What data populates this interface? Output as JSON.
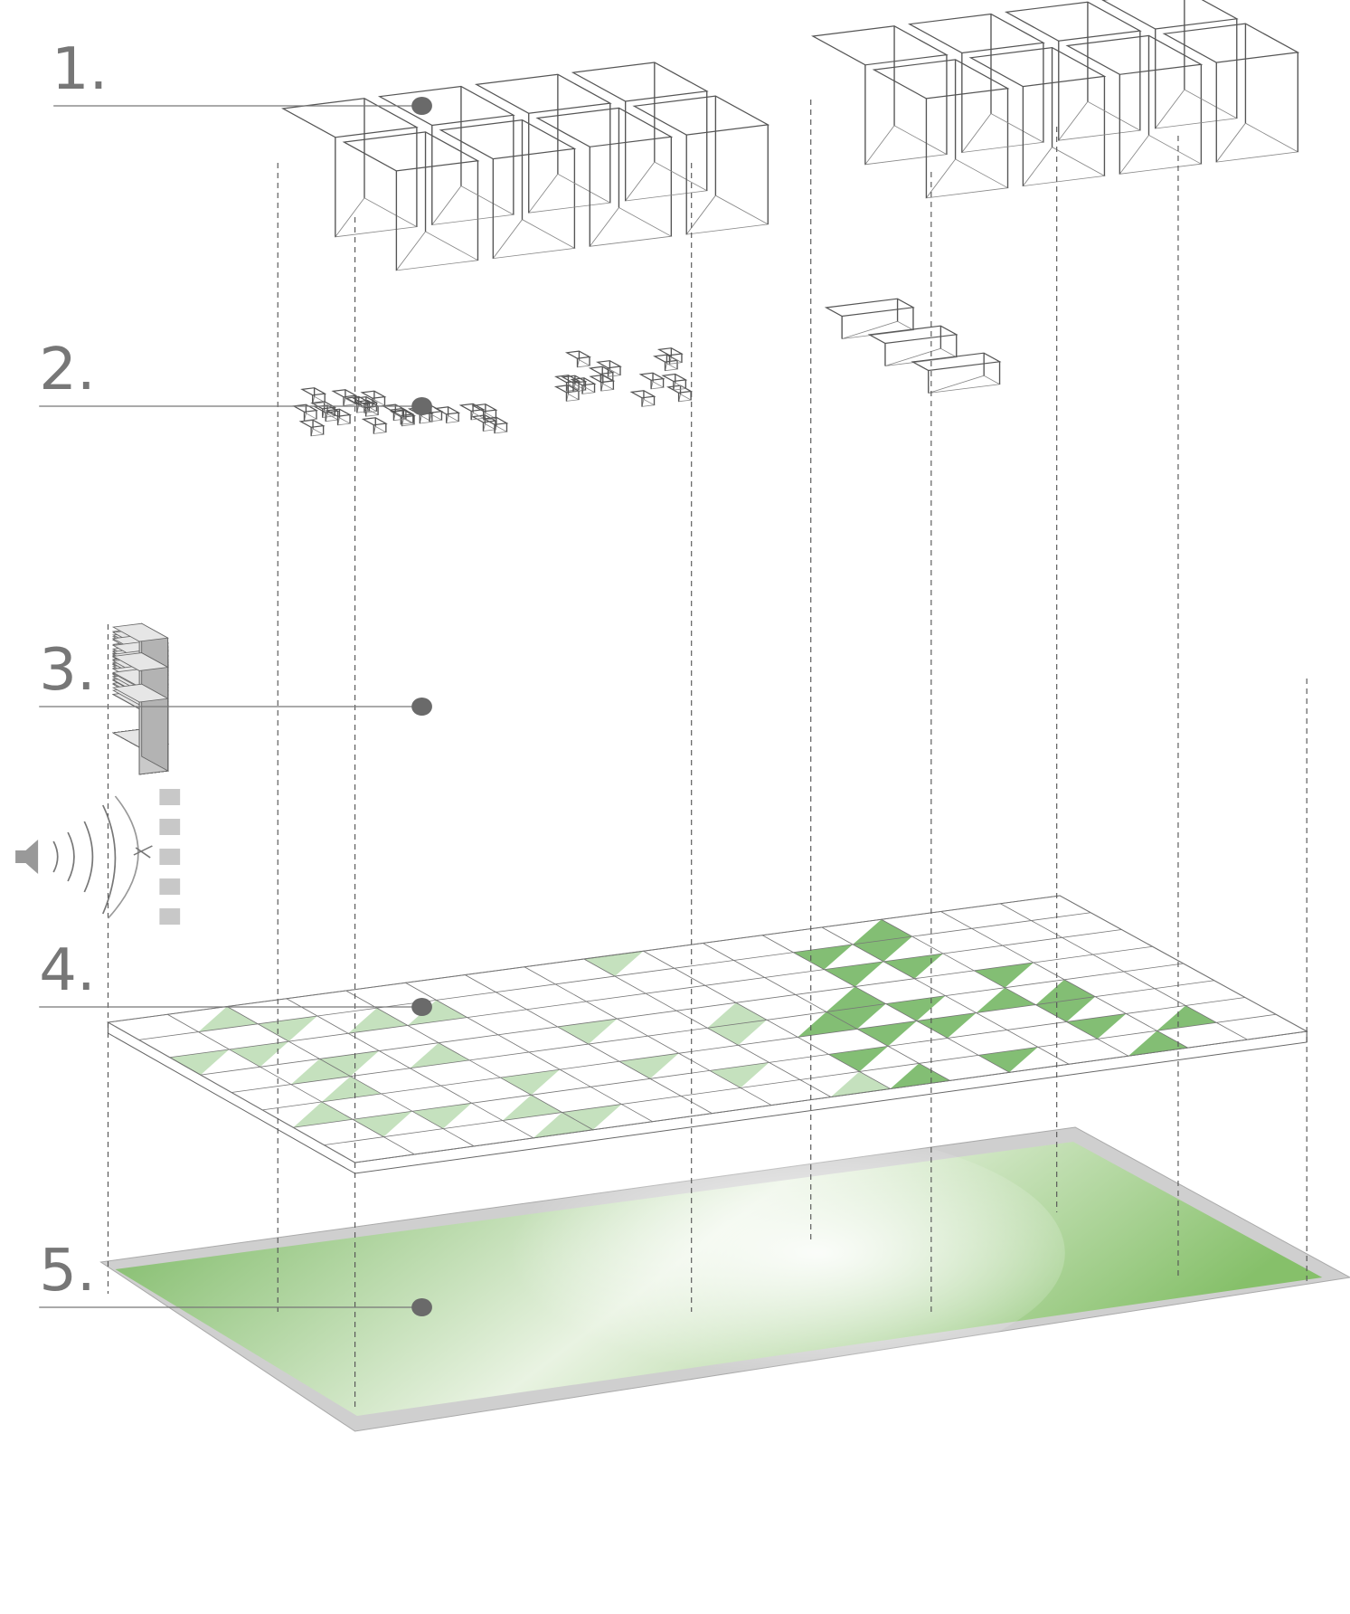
{
  "labels": [
    {
      "text": "1."
    },
    {
      "text": "2."
    },
    {
      "text": "3."
    },
    {
      "text": "4."
    },
    {
      "text": "5."
    }
  ]
}
